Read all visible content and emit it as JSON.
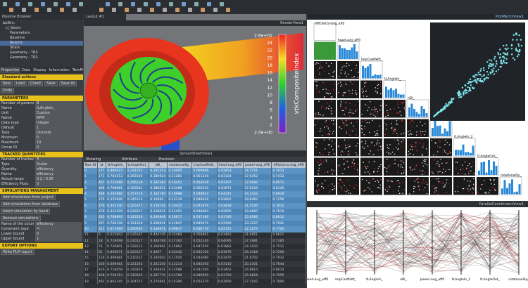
{
  "pipeline": {
    "title": "Pipeline Browser",
    "items": [
      "builtin:",
      "cl_Geom",
      "Parameters",
      "Baseline",
      "Results",
      "Shars",
      "Geometry - TRS",
      "Geometry - TRS"
    ]
  },
  "properties": {
    "tabs": [
      "Properties",
      "Data",
      "Display",
      "Information",
      "TwinMesh Inspector"
    ],
    "sections": [
      {
        "title": "Standard actions",
        "buttons": [
          "New",
          "Load",
          "Check",
          "Save",
          "Save As",
          "Undo"
        ]
      },
      {
        "title": "PARAMETERS",
        "fields": [
          [
            "Number of parameters",
            "8"
          ],
          [
            "Name",
            "tLAngleIn_"
          ],
          [
            "Unit",
            "Custom"
          ],
          [
            "Name",
            "RPM"
          ],
          [
            "Data type",
            "Integer"
          ],
          [
            "Default",
            "1"
          ],
          [
            "Type",
            "Discrete"
          ],
          [
            "Minimum",
            "0"
          ],
          [
            "Maximum",
            "10"
          ],
          [
            "Group ID",
            "0"
          ]
        ]
      },
      {
        "title": "TRACKED QUANTITIES",
        "fields": [
          [
            "Number of tracked quantities",
            "3"
          ],
          [
            "Type",
            "Scalar"
          ],
          [
            "Quantity",
            "efficiency"
          ],
          [
            "Name",
            "efficiency"
          ],
          [
            "Actual range",
            "0.2 / 0.95"
          ],
          [
            "Efficiency Ploss",
            "0"
          ]
        ]
      },
      {
        "title": "SIMULATIONS MANAGEMENT",
        "buttons": [
          "Add simulations from project",
          "Add simulations from database",
          "Insert simulation by hand",
          "Remove simulations"
        ],
        "fields": [
          [
            "Name of the column",
            "efficiency"
          ],
          [
            "Constraint type",
            "="
          ],
          [
            "Lower bound",
            "0"
          ],
          [
            "Upper bound",
            "1"
          ]
        ]
      },
      {
        "title": "EXPORT OPTIONS",
        "buttons": [
          "Write PLM report"
        ]
      }
    ]
  },
  "render_view": {
    "tab": "Layout #1",
    "name": "RenderView1",
    "colorbar": {
      "title": "vtkCompositeIndex",
      "labels": [
        "2.6e+01",
        "24",
        "22",
        "20",
        "18",
        "16",
        "14",
        "12",
        "10",
        "8",
        "6",
        "4",
        "2",
        "2.0e+00"
      ]
    }
  },
  "spreadsheet": {
    "title": "SpreadSheetView1",
    "showing": "Showing",
    "attribute": "Attribute",
    "precision": "Precision",
    "columns": [
      "Row ID",
      "id",
      "tLAngleIn_",
      "tLAngleOut_",
      "nBl_",
      "rotationalSp_",
      "impCoeffeltt_",
      "head-avg_eff0",
      "power-avg_eff0",
      "efficiency-avg_eff0"
    ],
    "rows": [
      [
        "0",
        "177",
        "0.860623",
        "0.331252",
        "0.247353",
        "0.16005",
        "0.069866",
        "0.02853",
        "24.7251",
        "0.7612"
      ],
      [
        "1",
        "171",
        "0.764213",
        "0.292160",
        "0.380924",
        "0.11281",
        "0.051240",
        "0.03104",
        "17.6452",
        "0.7433"
      ],
      [
        "2",
        "467",
        "0.722988",
        "0.295239",
        "0.382283",
        "0.10452",
        "0.054028",
        "0.03297",
        "22.9082",
        "0.8071"
      ],
      [
        "3",
        "488",
        "0.798881",
        "0.356581",
        "0.380621",
        "0.13468",
        "0.060530",
        "0.03971",
        "27.6219",
        "0.8145"
      ],
      [
        "4",
        "488",
        "0.592984",
        "0.257116",
        "0.185785",
        "0.10988",
        "0.048922",
        "0.04241",
        "14.3322",
        "0.6930"
      ],
      [
        "5",
        "276",
        "0.325846",
        "0.245113",
        "0.16082",
        "0.12119",
        "0.049630",
        "0.02802",
        "18.8462",
        "0.7256"
      ],
      [
        "6",
        "276",
        "0.331240",
        "0.225377",
        "0.258742",
        "0.10425",
        "0.041870",
        "0.02818",
        "21.5520",
        "0.7812"
      ],
      [
        "7",
        "276",
        "0.331299",
        "0.228227",
        "0.138011",
        "0.11451",
        "0.048882",
        "0.02895",
        "19.4687",
        "0.7610"
      ],
      [
        "8",
        "265",
        "0.768892",
        "0.322526",
        "0.240846",
        "0.16617",
        "0.037180",
        "0.03740",
        "25.8366",
        "0.8012"
      ],
      [
        "9",
        "297",
        "0.740128",
        "0.321318",
        "0.206641",
        "0.11847",
        "0.040071",
        "0.03390",
        "23.3127",
        "0.7941"
      ],
      [
        "10",
        "311",
        "0.617869",
        "0.290065",
        "0.166071",
        "0.09817",
        "0.038770",
        "0.02721",
        "22.1277",
        "0.7702"
      ],
      [
        "11",
        "6",
        "0.615802",
        "0.235167",
        "0.444745",
        "0.22484",
        "0.050861",
        "0.03481",
        "21.0851",
        "0.6621"
      ],
      [
        "12",
        "18",
        "0.719098",
        "0.230127",
        "0.446768",
        "0.17392",
        "0.052240",
        "0.04095",
        "27.2981",
        "0.7385"
      ],
      [
        "13",
        "75",
        "0.729801",
        "0.228122",
        "0.360601",
        "0.15862",
        "0.047550",
        "0.03881",
        "24.1020",
        "0.7511"
      ],
      [
        "14",
        "81",
        "0.896871",
        "0.220137",
        "0.4407",
        "0.20442",
        "0.052100",
        "0.03670",
        "26.4418",
        "0.7200"
      ],
      [
        "15",
        "136",
        "0.898881",
        "0.230122",
        "0.240002",
        "0.11045",
        "0.043080",
        "0.03470",
        "21.8702",
        "0.7932"
      ],
      [
        "16",
        "160",
        "0.669461",
        "0.221245",
        "0.321250",
        "0.13214",
        "0.045200",
        "0.03110",
        "20.2301",
        "0.7644"
      ],
      [
        "17",
        "416",
        "0.716058",
        "0.316420",
        "0.248441",
        "0.12088",
        "0.041500",
        "0.03402",
        "24.8814",
        "0.8010"
      ],
      [
        "18",
        "468",
        "0.729312",
        "0.310245",
        "0.287770",
        "0.13760",
        "0.049990",
        "0.03790",
        "25.6618",
        "0.7955"
      ],
      [
        "19",
        "482",
        "0.801345",
        "0.304721",
        "0.276681",
        "0.14390",
        "0.053370",
        "0.03950",
        "27.1042",
        "0.7890"
      ]
    ]
  },
  "scatter_matrix": {
    "title": "PlotMatrixView1",
    "variables": [
      "efficiency-avg_eff0",
      "head-avg_eff0",
      "impCoeffeltt_",
      "tLAngleIn_",
      "nBl_",
      "power-avg_eff0",
      "tLAngleIn_2",
      "tLAngleOut_",
      "rotationalSp_"
    ]
  },
  "parallel": {
    "title": "ParallelCoordinatesView1",
    "axes": [
      "head-avg_eff0",
      "impCoeffeltt_",
      "tLAngleIn_",
      "nBl_",
      "power-avg_eff0",
      "tLAngleIn_2",
      "tLAngleOut_",
      "rotationalSp_"
    ]
  }
}
